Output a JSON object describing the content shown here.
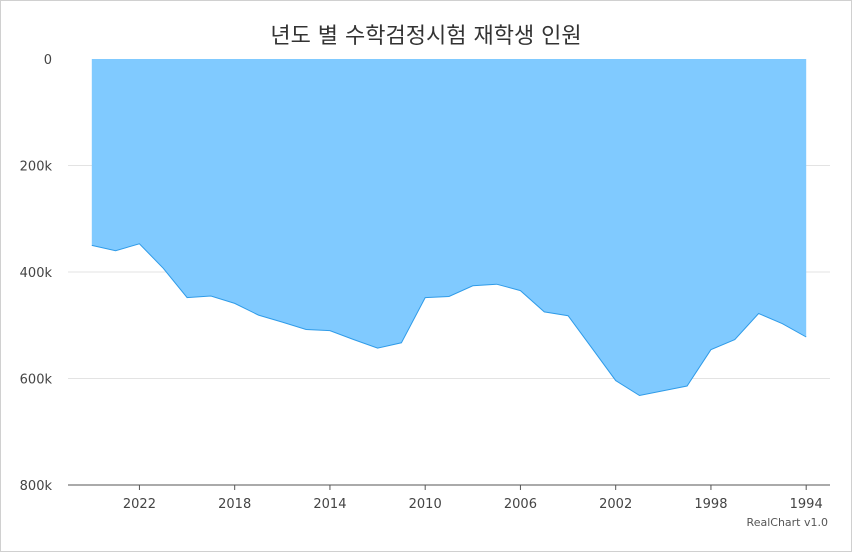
{
  "chart_data": {
    "type": "area",
    "title": "년도 별 수학검정시험 재학생 인원",
    "credit": "RealChart v1.0",
    "x_axis": {
      "reversed": true,
      "range": [
        2025,
        1993
      ],
      "ticks": [
        "2022",
        "2018",
        "2014",
        "2010",
        "2006",
        "2002",
        "1998",
        "1994"
      ]
    },
    "y_axis": {
      "reversed": true,
      "range": [
        0,
        800000
      ],
      "ticks": [
        {
          "value": 0,
          "label": "0"
        },
        {
          "value": 200000,
          "label": "200k"
        },
        {
          "value": 400000,
          "label": "400k"
        },
        {
          "value": 600000,
          "label": "600k"
        },
        {
          "value": 800000,
          "label": "800k"
        }
      ],
      "grid": true
    },
    "legend": "none",
    "color": "#80caff",
    "line_color": "#2f9be8",
    "x": [
      2024,
      2023,
      2022,
      2021,
      2020,
      2019,
      2018,
      2017,
      2016,
      2015,
      2014,
      2013,
      2012,
      2011,
      2010,
      2009,
      2008,
      2007,
      2006,
      2005,
      2004,
      2003,
      2002,
      2001,
      2000,
      1999,
      1998,
      1997,
      1996,
      1995,
      1994
    ],
    "values": [
      350000,
      360000,
      347000,
      393000,
      448000,
      445000,
      459000,
      481000,
      494000,
      508000,
      510000,
      527000,
      543000,
      533000,
      448000,
      446000,
      426000,
      423000,
      435000,
      475000,
      482000,
      543000,
      604000,
      632000,
      623000,
      614000,
      546000,
      527000,
      478000,
      497000,
      522000
    ]
  }
}
